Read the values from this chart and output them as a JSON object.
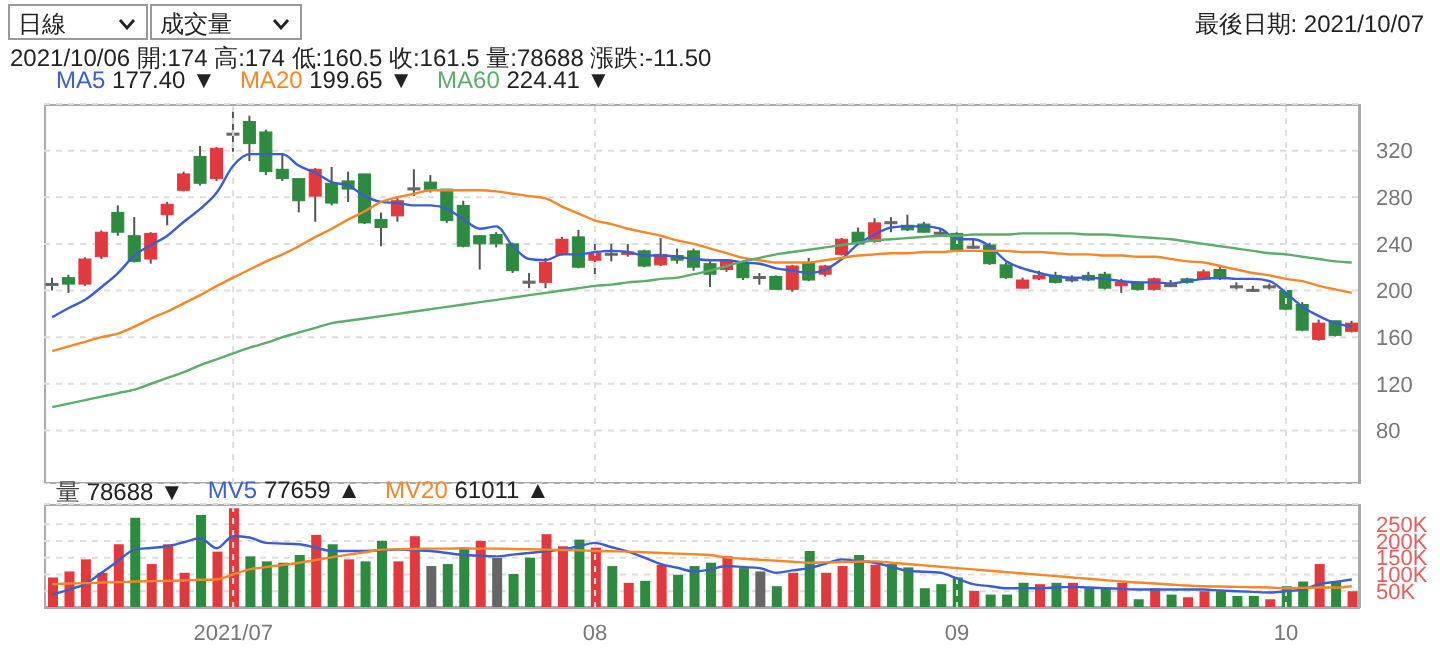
{
  "chart_data": [
    {
      "type": "candlestick",
      "title": "2021/10/06 開:174 高:174 低:160.5 收:161.5 量:78688 漲跌:-11.50",
      "annotations": [
        "日線",
        "成交量",
        "最後日期: 2021/10/07"
      ],
      "categories": [
        null,
        null,
        null,
        null,
        null,
        null,
        null,
        null,
        null,
        null,
        null,
        "2021/07",
        null,
        null,
        null,
        null,
        null,
        null,
        null,
        null,
        null,
        null,
        null,
        null,
        null,
        null,
        null,
        null,
        null,
        null,
        null,
        null,
        null,
        "08",
        null,
        null,
        null,
        null,
        null,
        null,
        null,
        null,
        null,
        null,
        null,
        null,
        null,
        null,
        null,
        null,
        null,
        null,
        null,
        null,
        null,
        "09",
        null,
        null,
        null,
        null,
        null,
        null,
        null,
        null,
        null,
        null,
        null,
        null,
        null,
        null,
        null,
        null,
        null,
        null,
        null,
        "10",
        null,
        null,
        null,
        null
      ],
      "ohlc": [
        [
          206,
          211,
          200,
          206
        ],
        [
          211,
          213.5,
          198,
          205.5
        ],
        [
          205.5,
          228.5,
          204,
          227
        ],
        [
          229,
          251.5,
          227,
          250
        ],
        [
          267,
          273,
          247,
          250
        ],
        [
          247,
          263,
          224,
          225
        ],
        [
          227,
          250,
          223,
          249
        ],
        [
          265,
          276,
          256,
          274
        ],
        [
          286,
          302,
          285,
          300
        ],
        [
          315,
          324,
          290,
          292
        ],
        [
          296,
          323,
          294,
          322
        ],
        [
          335,
          354,
          319,
          335
        ],
        [
          345,
          350,
          311,
          326
        ],
        [
          336,
          338,
          299,
          302
        ],
        [
          304,
          318,
          294,
          296
        ],
        [
          296,
          296,
          267,
          277
        ],
        [
          281,
          305,
          259,
          304
        ],
        [
          292,
          306,
          273,
          275
        ],
        [
          294,
          302,
          276,
          287
        ],
        [
          300,
          300,
          257,
          258
        ],
        [
          261,
          267,
          238,
          254
        ],
        [
          264,
          281,
          259,
          277
        ],
        [
          288,
          304,
          281,
          288
        ],
        [
          293,
          299,
          284,
          286
        ],
        [
          287,
          287,
          258,
          260
        ],
        [
          273,
          277,
          237,
          238
        ],
        [
          247,
          247,
          218,
          240
        ],
        [
          248,
          250,
          237,
          240
        ],
        [
          240,
          241,
          215,
          217
        ],
        [
          208,
          215,
          202,
          208
        ],
        [
          207,
          228,
          202,
          224
        ],
        [
          231,
          246,
          230,
          244
        ],
        [
          246,
          252,
          219,
          220
        ],
        [
          226,
          242,
          214,
          232
        ],
        [
          232,
          240,
          225,
          232
        ],
        [
          231,
          240,
          229,
          233
        ],
        [
          234,
          235,
          220,
          221
        ],
        [
          222,
          245,
          221,
          231
        ],
        [
          230,
          236,
          223,
          226
        ],
        [
          234,
          236,
          217,
          220
        ],
        [
          223,
          225,
          203,
          214
        ],
        [
          218,
          226,
          216,
          225
        ],
        [
          224,
          225,
          209,
          211
        ],
        [
          212,
          215,
          205,
          212
        ],
        [
          212,
          213,
          201,
          201
        ],
        [
          201,
          222,
          199,
          221
        ],
        [
          224,
          228,
          208,
          209
        ],
        [
          214,
          222,
          212,
          221
        ],
        [
          231,
          245,
          230,
          244
        ],
        [
          250,
          254,
          239,
          240
        ],
        [
          242,
          262,
          241,
          258
        ],
        [
          259,
          263,
          250,
          259
        ],
        [
          256,
          265,
          251,
          252
        ],
        [
          257,
          259,
          250,
          250
        ],
        [
          250,
          253,
          247,
          250
        ],
        [
          249,
          250,
          233,
          235
        ],
        [
          238,
          245,
          236,
          238
        ],
        [
          239,
          241,
          222,
          223
        ],
        [
          222,
          224,
          210,
          211
        ],
        [
          202,
          211,
          202,
          209
        ],
        [
          210,
          217,
          209,
          213
        ],
        [
          213,
          216,
          206,
          207
        ],
        [
          210,
          213,
          207,
          210
        ],
        [
          213,
          216,
          208,
          209
        ],
        [
          214,
          216,
          201,
          202
        ],
        [
          204,
          210,
          198,
          207
        ],
        [
          207,
          208,
          200,
          201
        ],
        [
          201,
          211,
          200,
          210
        ],
        [
          205,
          209,
          203,
          205
        ],
        [
          210,
          211,
          206,
          207
        ],
        [
          210,
          218,
          209,
          216
        ],
        [
          218,
          222,
          209,
          210
        ],
        [
          204,
          207,
          201,
          204
        ],
        [
          201,
          204,
          199,
          201
        ],
        [
          204,
          206,
          201,
          204
        ],
        [
          200,
          202,
          183,
          184
        ],
        [
          188,
          190,
          165,
          166
        ],
        [
          158,
          175,
          157,
          172
        ],
        [
          174,
          174,
          160.5,
          161.5
        ],
        [
          165,
          174,
          164,
          172
        ]
      ],
      "colors": [
        "#666666",
        "#2d8a3e",
        "#e0393e",
        "#e0393e",
        "#2d8a3e",
        "#2d8a3e",
        "#e0393e",
        "#e0393e",
        "#e0393e",
        "#2d8a3e",
        "#e0393e",
        "#666666",
        "#2d8a3e",
        "#2d8a3e",
        "#2d8a3e",
        "#2d8a3e",
        "#e0393e",
        "#2d8a3e",
        "#2d8a3e",
        "#2d8a3e",
        "#2d8a3e",
        "#e0393e",
        "#666666",
        "#2d8a3e",
        "#2d8a3e",
        "#2d8a3e",
        "#2d8a3e",
        "#2d8a3e",
        "#2d8a3e",
        "#666666",
        "#e0393e",
        "#e0393e",
        "#2d8a3e",
        "#e0393e",
        "#666666",
        "#e0393e",
        "#2d8a3e",
        "#e0393e",
        "#2d8a3e",
        "#2d8a3e",
        "#2d8a3e",
        "#e0393e",
        "#2d8a3e",
        "#666666",
        "#2d8a3e",
        "#e0393e",
        "#2d8a3e",
        "#e0393e",
        "#e0393e",
        "#2d8a3e",
        "#e0393e",
        "#666666",
        "#2d8a3e",
        "#2d8a3e",
        "#666666",
        "#2d8a3e",
        "#666666",
        "#2d8a3e",
        "#2d8a3e",
        "#e0393e",
        "#e0393e",
        "#2d8a3e",
        "#666666",
        "#2d8a3e",
        "#2d8a3e",
        "#e0393e",
        "#2d8a3e",
        "#e0393e",
        "#666666",
        "#2d8a3e",
        "#e0393e",
        "#2d8a3e",
        "#666666",
        "#666666",
        "#666666",
        "#2d8a3e",
        "#2d8a3e",
        "#e0393e",
        "#2d8a3e",
        "#e0393e"
      ],
      "series": [
        {
          "name": "MA5 177.40 ▼",
          "type": "line",
          "color": "#3a5fcd",
          "values": [
            177,
            185,
            192,
            203,
            215,
            230,
            239,
            247,
            259,
            270,
            284,
            307,
            317,
            317,
            317,
            307,
            301,
            293,
            290,
            281,
            276,
            275,
            273,
            273,
            270,
            261,
            253,
            255,
            238,
            227,
            226,
            231,
            231,
            233,
            234,
            233,
            230,
            230,
            229,
            227,
            226,
            226,
            224,
            223,
            219,
            217,
            215,
            218,
            227,
            240,
            248,
            254,
            255,
            255,
            253,
            244,
            244,
            238,
            225,
            219,
            215,
            212,
            211,
            211,
            210,
            208,
            207,
            207,
            206,
            208,
            210,
            211,
            210,
            210,
            208,
            198,
            186,
            178,
            172,
            169
          ]
        },
        {
          "name": "MA20 199.65 ▼",
          "type": "line",
          "color": "#f5862a",
          "values": [
            148,
            152,
            156,
            160,
            163,
            169,
            176,
            182,
            189,
            196,
            204,
            211,
            218,
            225,
            231,
            238,
            246,
            253,
            261,
            268,
            276,
            280,
            283,
            286,
            286,
            286,
            286,
            285,
            283,
            281,
            279,
            272,
            266,
            260,
            257,
            253,
            250,
            247,
            243,
            240,
            236,
            232,
            228,
            226,
            224,
            224,
            224,
            226,
            228,
            230,
            231,
            232,
            232,
            233,
            233,
            234,
            234,
            234,
            234,
            233,
            233,
            232,
            231,
            231,
            230,
            230,
            229,
            229,
            227,
            225,
            224,
            221,
            218,
            215,
            213,
            210,
            208,
            204,
            201,
            198
          ]
        },
        {
          "name": "MA60 224.41 ▼",
          "type": "line",
          "color": "#5cad6b",
          "values": [
            100,
            103,
            106,
            109,
            112,
            115,
            120,
            125,
            130,
            136,
            141,
            146,
            151,
            155,
            160,
            164,
            168,
            172,
            174,
            176,
            178,
            180,
            182,
            184,
            186,
            188,
            190,
            192,
            194,
            196,
            198,
            200,
            202,
            204,
            205,
            207,
            208,
            210,
            211,
            214,
            217,
            221,
            225,
            228,
            231,
            233,
            235,
            237,
            239,
            241,
            243,
            244,
            245,
            246,
            247,
            247,
            248,
            248,
            248,
            249,
            249,
            249,
            249,
            248,
            248,
            247,
            246,
            245,
            244,
            242,
            240,
            238,
            236,
            234,
            232,
            231,
            229,
            227,
            225,
            224
          ]
        }
      ],
      "ylim": [
        34,
        360
      ],
      "yticks": [
        80,
        120,
        160,
        200,
        240,
        280,
        320
      ],
      "grid": true,
      "legend": "top left",
      "tick_labels": "y"
    },
    {
      "type": "bar",
      "categories": [
        null,
        null,
        null,
        null,
        null,
        null,
        null,
        null,
        null,
        null,
        null,
        "2021/07",
        null,
        null,
        null,
        null,
        null,
        null,
        null,
        null,
        null,
        null,
        null,
        null,
        null,
        null,
        null,
        null,
        null,
        null,
        null,
        null,
        null,
        "08",
        null,
        null,
        null,
        null,
        null,
        null,
        null,
        null,
        null,
        null,
        null,
        null,
        null,
        null,
        null,
        null,
        null,
        null,
        null,
        null,
        null,
        "09",
        null,
        null,
        null,
        null,
        null,
        null,
        null,
        null,
        null,
        null,
        null,
        null,
        null,
        null,
        null,
        null,
        null,
        null,
        null,
        "10",
        null,
        null,
        null,
        null
      ],
      "series": [
        {
          "name": "量 78688 ▼",
          "type": "bar",
          "colors": [
            "#e0393e",
            "#e0393e",
            "#e0393e",
            "#e0393e",
            "#e0393e",
            "#2d8a3e",
            "#e0393e",
            "#e0393e",
            "#e0393e",
            "#2d8a3e",
            "#e0393e",
            "#e0393e",
            "#2d8a3e",
            "#2d8a3e",
            "#2d8a3e",
            "#2d8a3e",
            "#e0393e",
            "#2d8a3e",
            "#e0393e",
            "#2d8a3e",
            "#2d8a3e",
            "#e0393e",
            "#e0393e",
            "#666666",
            "#2d8a3e",
            "#2d8a3e",
            "#e0393e",
            "#666666",
            "#2d8a3e",
            "#2d8a3e",
            "#e0393e",
            "#e0393e",
            "#2d8a3e",
            "#e0393e",
            "#2d8a3e",
            "#e0393e",
            "#2d8a3e",
            "#e0393e",
            "#2d8a3e",
            "#2d8a3e",
            "#2d8a3e",
            "#e0393e",
            "#2d8a3e",
            "#666666",
            "#2d8a3e",
            "#e0393e",
            "#2d8a3e",
            "#e0393e",
            "#e0393e",
            "#2d8a3e",
            "#e0393e",
            "#2d8a3e",
            "#2d8a3e",
            "#2d8a3e",
            "#2d8a3e",
            "#2d8a3e",
            "#e0393e",
            "#2d8a3e",
            "#2d8a3e",
            "#2d8a3e",
            "#e0393e",
            "#2d8a3e",
            "#e0393e",
            "#2d8a3e",
            "#2d8a3e",
            "#e0393e",
            "#2d8a3e",
            "#e0393e",
            "#2d8a3e",
            "#e0393e",
            "#e0393e",
            "#2d8a3e",
            "#2d8a3e",
            "#2d8a3e",
            "#e0393e",
            "#2d8a3e",
            "#2d8a3e",
            "#e0393e",
            "#2d8a3e",
            "#e0393e"
          ],
          "values": [
            91000,
            109000,
            145000,
            105000,
            190000,
            269000,
            131000,
            190000,
            105000,
            277000,
            168000,
            297000,
            154000,
            139000,
            135000,
            158000,
            218000,
            190000,
            145000,
            139000,
            200000,
            139000,
            214000,
            125000,
            131000,
            178000,
            200000,
            149000,
            101000,
            150000,
            220000,
            184000,
            204000,
            180000,
            125000,
            75000,
            81000,
            129000,
            99000,
            125000,
            135000,
            154000,
            119000,
            109000,
            65000,
            105000,
            170000,
            105000,
            125000,
            158000,
            129000,
            131000,
            121000,
            59000,
            71000,
            91000,
            51000,
            40000,
            40000,
            75000,
            71000,
            75000,
            75000,
            59000,
            59000,
            75000,
            26000,
            59000,
            40000,
            32000,
            50000,
            50000,
            36000,
            36000,
            26000,
            65000,
            79000,
            131000,
            79000,
            50000
          ]
        },
        {
          "name": "MV5 77659 ▲",
          "type": "line",
          "color": "#3a5fcd",
          "values": [
            40000,
            55000,
            71000,
            105000,
            140000,
            174000,
            179000,
            184000,
            196000,
            208000,
            178000,
            214000,
            210000,
            194000,
            192000,
            190000,
            180000,
            170000,
            170000,
            170000,
            172000,
            174000,
            172000,
            170000,
            164000,
            158000,
            156000,
            154000,
            159000,
            164000,
            169000,
            174000,
            184000,
            194000,
            181000,
            168000,
            150000,
            131000,
            120000,
            109000,
            115000,
            125000,
            122000,
            119000,
            105000,
            112000,
            119000,
            132000,
            145000,
            140000,
            135000,
            123000,
            111000,
            108000,
            105000,
            88000,
            71000,
            65000,
            59000,
            59000,
            59000,
            61000,
            63000,
            61000,
            59000,
            57000,
            55000,
            55000,
            55000,
            55000,
            55000,
            52000,
            50000,
            48000,
            46000,
            50000,
            55000,
            71000,
            78000,
            85000
          ]
        },
        {
          "name": "MV20 61011 ▲",
          "type": "line",
          "color": "#f5862a",
          "values": [
            71000,
            73000,
            74000,
            76000,
            77000,
            79000,
            80000,
            81000,
            82000,
            84000,
            85000,
            100000,
            115000,
            122000,
            128000,
            135000,
            143000,
            151000,
            159000,
            166000,
            174000,
            175000,
            176000,
            177000,
            177000,
            178000,
            177000,
            177000,
            176000,
            175000,
            174000,
            173000,
            172000,
            170000,
            169000,
            168000,
            166000,
            164000,
            162000,
            160000,
            158000,
            150000,
            147000,
            144000,
            141000,
            138000,
            135000,
            136000,
            137000,
            138000,
            139000,
            135000,
            131000,
            127000,
            123000,
            119000,
            115000,
            111000,
            107000,
            103000,
            99000,
            95000,
            91000,
            87000,
            83000,
            79000,
            76000,
            73000,
            70000,
            67000,
            65000,
            64000,
            63000,
            62000,
            61000,
            59000,
            60000,
            61000,
            61000,
            65000
          ]
        }
      ],
      "ylim": [
        0,
        310000
      ],
      "yticks": [
        {
          "value": 50000,
          "label": "50K"
        },
        {
          "value": 100000,
          "label": "100K"
        },
        {
          "value": 150000,
          "label": "150K"
        },
        {
          "value": 200000,
          "label": "200K"
        },
        {
          "value": 250000,
          "label": "250K"
        }
      ],
      "grid": true,
      "legend": "top left"
    }
  ]
}
